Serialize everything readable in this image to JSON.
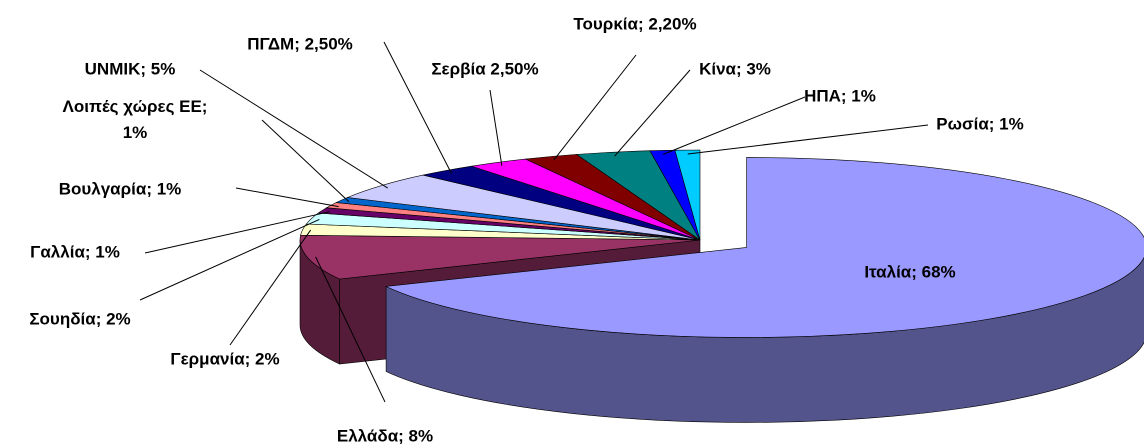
{
  "chart_data": {
    "type": "pie",
    "value_labels": [
      "Ιταλία; 68%",
      "Ελλάδα; 8%",
      "Γερμανία; 2%",
      "Σουηδία; 2%",
      "Γαλλία; 1%",
      "Βουλγαρία; 1%",
      "Λοιπές χώρες ΕΕ;\n1%",
      "UNMIK; 5%",
      "ΠΓΔΜ; 2,50%",
      "Σερβία 2,50%",
      "Τουρκία; 2,20%",
      "Κίνα; 3%",
      "ΗΠΑ; 1%",
      "Ρωσία; 1%"
    ],
    "values": [
      68,
      8,
      2,
      2,
      1,
      1,
      1,
      5,
      2.5,
      2.5,
      2.2,
      3,
      1,
      1
    ],
    "colors": [
      "#9999ff",
      "#993366",
      "#ffffcc",
      "#ccffff",
      "#660066",
      "#ff8080",
      "#0066cc",
      "#ccccff",
      "#000080",
      "#ff00ff",
      "#800000",
      "#008080",
      "#0000ff",
      "#00ccff"
    ]
  }
}
